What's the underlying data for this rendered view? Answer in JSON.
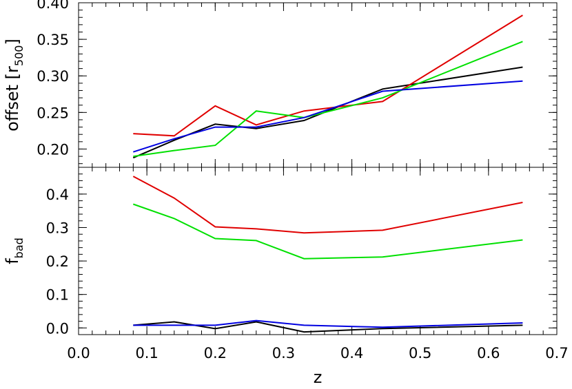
{
  "chart_data": [
    {
      "type": "line",
      "panel": "top",
      "ylabel": "offset [r",
      "ylabel_sub": "500",
      "ylabel_close": "]",
      "xlim": [
        0.0,
        0.7
      ],
      "ylim": [
        0.175,
        0.4
      ],
      "yticks": [
        0.2,
        0.25,
        0.3,
        0.35,
        0.4
      ],
      "ytick_labels": [
        "0.20",
        "0.25",
        "0.30",
        "0.35",
        "0.40"
      ],
      "x": [
        0.08,
        0.14,
        0.2,
        0.26,
        0.33,
        0.445,
        0.65
      ],
      "series": [
        {
          "color": "#000000",
          "values": [
            0.188,
            0.212,
            0.234,
            0.228,
            0.239,
            0.282,
            0.312
          ]
        },
        {
          "color": "#e00000",
          "values": [
            0.221,
            0.218,
            0.259,
            0.233,
            0.252,
            0.265,
            0.383
          ]
        },
        {
          "color": "#00e000",
          "values": [
            0.19,
            0.198,
            0.205,
            0.252,
            0.243,
            0.27,
            0.347
          ]
        },
        {
          "color": "#0000e0",
          "values": [
            0.196,
            0.214,
            0.23,
            0.23,
            0.243,
            0.279,
            0.293
          ]
        }
      ],
      "grid": false
    },
    {
      "type": "line",
      "panel": "bottom",
      "ylabel": "f",
      "ylabel_sub": "bad",
      "xlabel": "z",
      "xlim": [
        0.0,
        0.7
      ],
      "ylim": [
        -0.02,
        0.48
      ],
      "yticks": [
        0.0,
        0.1,
        0.2,
        0.3,
        0.4
      ],
      "ytick_labels": [
        "0.0",
        "0.1",
        "0.2",
        "0.3",
        "0.4"
      ],
      "xticks": [
        0.0,
        0.1,
        0.2,
        0.3,
        0.4,
        0.5,
        0.6,
        0.7
      ],
      "xtick_labels": [
        "0.0",
        "0.1",
        "0.2",
        "0.3",
        "0.4",
        "0.5",
        "0.6",
        "0.7"
      ],
      "x": [
        0.08,
        0.14,
        0.2,
        0.26,
        0.33,
        0.445,
        0.65
      ],
      "series": [
        {
          "color": "#e00000",
          "values": [
            0.453,
            0.388,
            0.302,
            0.296,
            0.284,
            0.292,
            0.375
          ]
        },
        {
          "color": "#00e000",
          "values": [
            0.37,
            0.327,
            0.267,
            0.261,
            0.207,
            0.212,
            0.263
          ]
        },
        {
          "color": "#000000",
          "values": [
            0.008,
            0.018,
            -0.002,
            0.018,
            -0.012,
            -0.002,
            0.008
          ]
        },
        {
          "color": "#0000e0",
          "values": [
            0.008,
            0.008,
            0.008,
            0.022,
            0.008,
            0.002,
            0.015
          ]
        }
      ],
      "grid": false
    }
  ]
}
